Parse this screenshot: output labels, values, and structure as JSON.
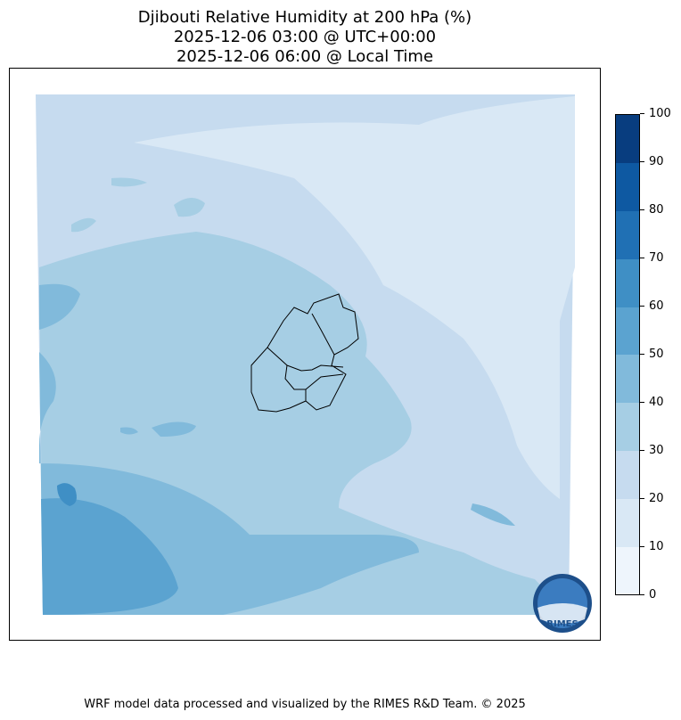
{
  "title": {
    "line1": "Djibouti Relative Humidity at 200 hPa (%)",
    "line2": "2025-12-06 03:00 @ UTC+00:00",
    "line3": "2025-12-06 06:00 @ Local Time"
  },
  "colorbar": {
    "ticks": [
      "0",
      "10",
      "20",
      "30",
      "40",
      "50",
      "60",
      "70",
      "80",
      "90",
      "100"
    ],
    "colors": [
      "#eef5fc",
      "#d9e8f5",
      "#c6dbef",
      "#a6cee4",
      "#81badb",
      "#5ba3d0",
      "#3f8fc5",
      "#2070b4",
      "#0e59a2",
      "#083d7f"
    ]
  },
  "logo": {
    "text": "RIMES"
  },
  "footer": "WRF model data processed and visualized by the RIMES R&D Team. © 2025"
}
